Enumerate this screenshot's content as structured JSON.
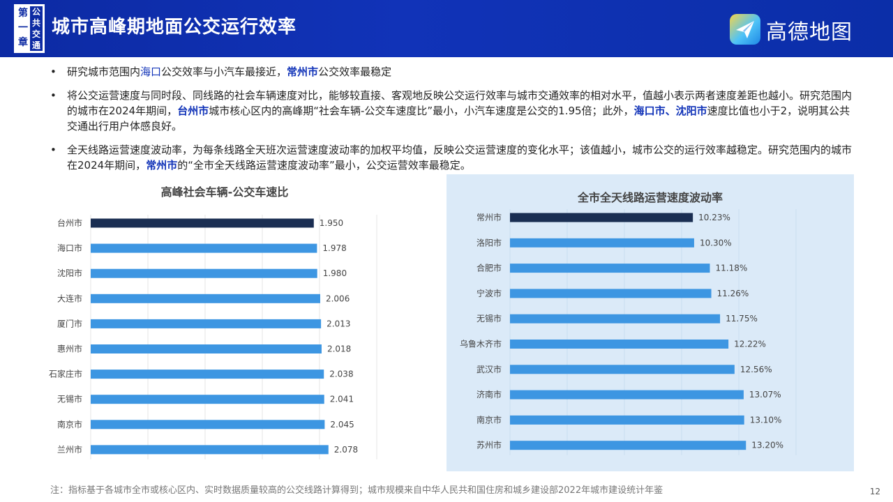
{
  "header": {
    "chapter_left": [
      "第",
      "一",
      "章"
    ],
    "chapter_right": [
      "公",
      "共",
      "交",
      "通"
    ],
    "title": "城市高峰期地面公交运行效率",
    "logo_text": "高德地图"
  },
  "bullets": [
    {
      "symbol": "•",
      "segments": [
        {
          "text": "研究城市范围内",
          "style": ""
        },
        {
          "text": "海口",
          "style": "blue"
        },
        {
          "text": "公交效率与小汽车最接近，",
          "style": ""
        },
        {
          "text": "常州市",
          "style": "bold"
        },
        {
          "text": "公交效率最稳定",
          "style": ""
        }
      ]
    },
    {
      "symbol": "•",
      "segments": [
        {
          "text": "将公交运营速度与同时段、同线路的社会车辆速度对比，能够较直接、客观地反映公交运行效率与城市交通效率的相对水平，值越小表示两者速度差距也越小。研究范围内的城市在2024年期间，",
          "style": ""
        },
        {
          "text": "台州市",
          "style": "bold"
        },
        {
          "text": "城市核心区内的高峰期“社会车辆-公交车速度比”最小，小汽车速度是公交的1.95倍；此外，",
          "style": ""
        },
        {
          "text": "海口市、沈阳市",
          "style": "bold"
        },
        {
          "text": "速度比值也小于2，说明其公共交通出行用户体感良好。",
          "style": ""
        }
      ]
    },
    {
      "symbol": "•",
      "segments": [
        {
          "text": "全天线路运营速度波动率，为每条线路全天班次运营速度波动率的加权平均值，反映公交运营速度的变化水平；该值越小，城市公交的运行效率越稳定。研究范围内的城市在2024年期间，",
          "style": ""
        },
        {
          "text": "常州市",
          "style": "bold"
        },
        {
          "text": "的“全市全天线路运营速度波动率”最小，公交运营效率最稳定。",
          "style": ""
        }
      ]
    }
  ],
  "chart_data": [
    {
      "type": "bar",
      "orientation": "horizontal",
      "title": "高峰社会车辆-公交车速比",
      "categories": [
        "台州市",
        "海口市",
        "沈阳市",
        "大连市",
        "厦门市",
        "惠州市",
        "石家庄市",
        "无锡市",
        "南京市",
        "兰州市"
      ],
      "values": [
        1.95,
        1.978,
        1.98,
        2.006,
        2.013,
        2.018,
        2.038,
        2.041,
        2.045,
        2.078
      ],
      "value_labels": [
        "1.950",
        "1.978",
        "1.980",
        "2.006",
        "2.013",
        "2.018",
        "2.038",
        "2.041",
        "2.045",
        "2.078"
      ],
      "xlim": [
        0,
        2.5
      ],
      "grid": true,
      "highlight_index": 0,
      "colors": {
        "bar": "#3d96e2",
        "highlight": "#1a2e52",
        "grid": "#e6e6e6"
      }
    },
    {
      "type": "bar",
      "orientation": "horizontal",
      "title": "全市全天线路运营速度波动率",
      "categories": [
        "常州市",
        "洛阳市",
        "合肥市",
        "宁波市",
        "无锡市",
        "乌鲁木齐市",
        "武汉市",
        "济南市",
        "南京市",
        "苏州市"
      ],
      "values": [
        10.23,
        10.3,
        11.18,
        11.26,
        11.75,
        12.22,
        12.56,
        13.07,
        13.1,
        13.2
      ],
      "value_labels": [
        "10.23%",
        "10.30%",
        "11.18%",
        "11.26%",
        "11.75%",
        "12.22%",
        "12.56%",
        "13.07%",
        "13.10%",
        "13.20%"
      ],
      "xlim": [
        0,
        16
      ],
      "grid": true,
      "highlight_index": 0,
      "colors": {
        "bar": "#3d96e2",
        "highlight": "#1a2e52",
        "grid": "#c9ddf0",
        "background": "#dbeaf8"
      }
    }
  ],
  "footnote": "注：指标基于各城市全市或核心区内、实时数据质量较高的公交线路计算得到；城市规模来自中华人民共和国住房和城乡建设部2022年城市建设统计年鉴",
  "page_number": "12"
}
